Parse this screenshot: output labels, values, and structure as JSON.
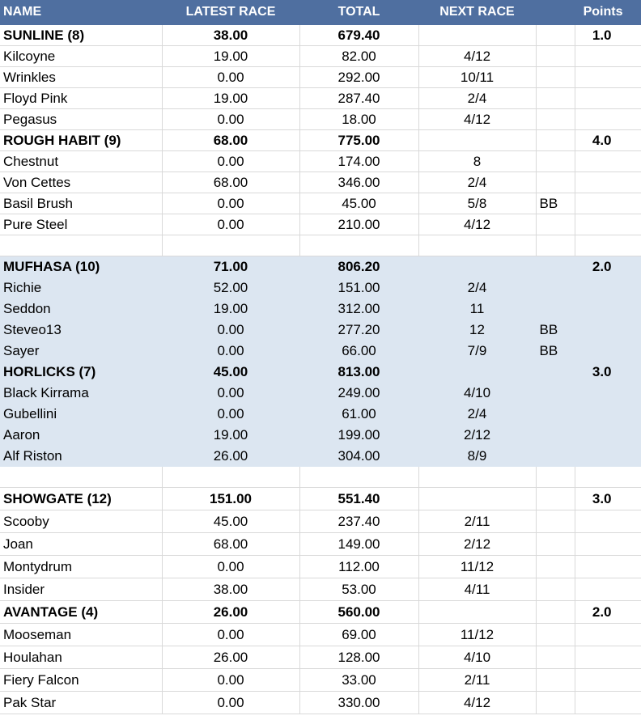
{
  "headers": [
    "NAME",
    "LATEST RACE",
    "TOTAL",
    "NEXT RACE",
    "",
    "Points"
  ],
  "rows": [
    {
      "type": "group",
      "name": "SUNLINE (8)",
      "latest": "38.00",
      "total": "679.40",
      "next": "",
      "note": "",
      "points": "1.0"
    },
    {
      "type": "member",
      "name": "Kilcoyne",
      "latest": "19.00",
      "total": "82.00",
      "next": "4/12",
      "note": "",
      "points": ""
    },
    {
      "type": "member",
      "name": "Wrinkles",
      "latest": "0.00",
      "total": "292.00",
      "next": "10/11",
      "note": "",
      "points": ""
    },
    {
      "type": "member",
      "name": "Floyd Pink",
      "latest": "19.00",
      "total": "287.40",
      "next": "2/4",
      "note": "",
      "points": ""
    },
    {
      "type": "member",
      "name": "Pegasus",
      "latest": "0.00",
      "total": "18.00",
      "next": "4/12",
      "note": "",
      "points": ""
    },
    {
      "type": "group",
      "name": "ROUGH HABIT (9)",
      "latest": "68.00",
      "total": "775.00",
      "next": "",
      "note": "",
      "points": "4.0"
    },
    {
      "type": "member",
      "name": "Chestnut",
      "latest": "0.00",
      "total": "174.00",
      "next": "8",
      "note": "",
      "points": ""
    },
    {
      "type": "member",
      "name": "Von Cettes",
      "latest": "68.00",
      "total": "346.00",
      "next": "2/4",
      "note": "",
      "points": ""
    },
    {
      "type": "member",
      "name": "Basil Brush",
      "latest": "0.00",
      "total": "45.00",
      "next": "5/8",
      "note": "BB",
      "points": ""
    },
    {
      "type": "member",
      "name": "Pure Steel",
      "latest": "0.00",
      "total": "210.00",
      "next": "4/12",
      "note": "",
      "points": ""
    },
    {
      "type": "blank"
    },
    {
      "type": "group",
      "shaded": true,
      "name": "MUFHASA (10)",
      "latest": "71.00",
      "total": "806.20",
      "next": "",
      "note": "",
      "points": "2.0"
    },
    {
      "type": "member",
      "shaded": true,
      "name": "Richie",
      "latest": "52.00",
      "total": "151.00",
      "next": "2/4",
      "note": "",
      "points": ""
    },
    {
      "type": "member",
      "shaded": true,
      "name": "Seddon",
      "latest": "19.00",
      "total": "312.00",
      "next": "11",
      "note": "",
      "points": ""
    },
    {
      "type": "member",
      "shaded": true,
      "name": "Steveo13",
      "latest": "0.00",
      "total": "277.20",
      "next": "12",
      "note": "BB",
      "points": ""
    },
    {
      "type": "member",
      "shaded": true,
      "name": "Sayer",
      "latest": "0.00",
      "total": "66.00",
      "next": "7/9",
      "note": "BB",
      "points": ""
    },
    {
      "type": "group",
      "shaded": true,
      "name": "HORLICKS (7)",
      "latest": "45.00",
      "total": "813.00",
      "next": "",
      "note": "",
      "points": "3.0"
    },
    {
      "type": "member",
      "shaded": true,
      "name": "Black Kirrama",
      "latest": "0.00",
      "total": "249.00",
      "next": "4/10",
      "note": "",
      "points": ""
    },
    {
      "type": "member",
      "shaded": true,
      "name": "Gubellini",
      "latest": "0.00",
      "total": "61.00",
      "next": "2/4",
      "note": "",
      "points": ""
    },
    {
      "type": "member",
      "shaded": true,
      "name": "Aaron",
      "latest": "19.00",
      "total": "199.00",
      "next": "2/12",
      "note": "",
      "points": ""
    },
    {
      "type": "member",
      "shaded": true,
      "name": "Alf Riston",
      "latest": "26.00",
      "total": "304.00",
      "next": "8/9",
      "note": "",
      "points": ""
    },
    {
      "type": "blank"
    },
    {
      "type": "group",
      "tall": true,
      "name": "SHOWGATE (12)",
      "latest": "151.00",
      "total": "551.40",
      "next": "",
      "note": "",
      "points": "3.0"
    },
    {
      "type": "member",
      "tall": true,
      "name": "Scooby",
      "latest": "45.00",
      "total": "237.40",
      "next": "2/11",
      "note": "",
      "points": ""
    },
    {
      "type": "member",
      "tall": true,
      "name": "Joan",
      "latest": "68.00",
      "total": "149.00",
      "next": "2/12",
      "note": "",
      "points": ""
    },
    {
      "type": "member",
      "tall": true,
      "name": "Montydrum",
      "latest": "0.00",
      "total": "112.00",
      "next": "11/12",
      "note": "",
      "points": ""
    },
    {
      "type": "member",
      "tall": true,
      "name": "Insider",
      "latest": "38.00",
      "total": "53.00",
      "next": "4/11",
      "note": "",
      "points": ""
    },
    {
      "type": "group",
      "tall": true,
      "name": "AVANTAGE (4)",
      "latest": "26.00",
      "total": "560.00",
      "next": "",
      "note": "",
      "points": "2.0"
    },
    {
      "type": "member",
      "tall": true,
      "name": "Mooseman",
      "latest": "0.00",
      "total": "69.00",
      "next": "11/12",
      "note": "",
      "points": ""
    },
    {
      "type": "member",
      "tall": true,
      "name": "Houlahan",
      "latest": "26.00",
      "total": "128.00",
      "next": "4/10",
      "note": "",
      "points": ""
    },
    {
      "type": "member",
      "tall": true,
      "name": "Fiery Falcon",
      "latest": "0.00",
      "total": "33.00",
      "next": "2/11",
      "note": "",
      "points": ""
    },
    {
      "type": "member",
      "tall": true,
      "name": "Pak Star",
      "latest": "0.00",
      "total": "330.00",
      "next": "4/12",
      "note": "",
      "points": ""
    }
  ]
}
